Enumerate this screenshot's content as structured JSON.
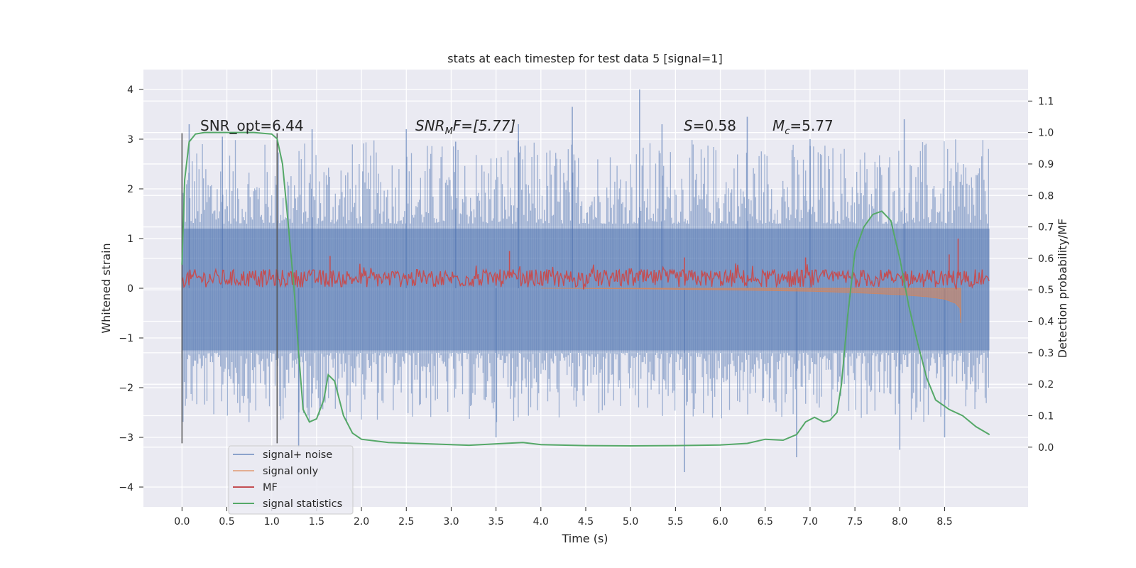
{
  "colors": {
    "background": "#eaeaf2",
    "grid": "#ffffff",
    "signal_noise": "#4c72b0",
    "signal_only": "#dd8452",
    "mf": "#c44e52",
    "stats": "#55a868",
    "vline": "#555555"
  },
  "chart_data": {
    "type": "line",
    "title": "stats at each timestep for test data 5 [signal=1]",
    "xlabel": "Time (s)",
    "ylabel": "Whitened strain",
    "y2label": "Detection probability/MF",
    "xlim": [
      -0.43,
      9.43
    ],
    "ylim": [
      -4.4,
      4.4
    ],
    "y2lim": [
      -0.19,
      1.2
    ],
    "xticks": [
      0.0,
      0.5,
      1.0,
      1.5,
      2.0,
      2.5,
      3.0,
      3.5,
      4.0,
      4.5,
      5.0,
      5.5,
      6.0,
      6.5,
      7.0,
      7.5,
      8.0,
      8.5
    ],
    "xtick_labels": [
      "0.0",
      "0.5",
      "1.0",
      "1.5",
      "2.0",
      "2.5",
      "3.0",
      "3.5",
      "4.0",
      "4.5",
      "5.0",
      "5.5",
      "6.0",
      "6.5",
      "7.0",
      "7.5",
      "8.0",
      "8.5"
    ],
    "yticks": [
      -4,
      -3,
      -2,
      -1,
      0,
      1,
      2,
      3,
      4
    ],
    "ytick_labels": [
      "−4",
      "−3",
      "−2",
      "−1",
      "0",
      "1",
      "2",
      "3",
      "4"
    ],
    "y2ticks": [
      0.0,
      0.1,
      0.2,
      0.3,
      0.4,
      0.5,
      0.6,
      0.7,
      0.8,
      0.9,
      1.0,
      1.1
    ],
    "y2tick_labels": [
      "0.0",
      "0.1",
      "0.2",
      "0.3",
      "0.4",
      "0.5",
      "0.6",
      "0.7",
      "0.8",
      "0.9",
      "1.0",
      "1.1"
    ],
    "grid": true,
    "legend_position": "lower-left",
    "legend": [
      "signal+ noise",
      "signal only",
      "MF",
      "signal statistics"
    ],
    "annotations": {
      "snr_opt": "SNR_opt=6.44",
      "snr_mf_main": "SNR",
      "snr_mf_sub": "M",
      "snr_mf_rest": "F=[5.77]",
      "s_main": "S",
      "s_rest": "=0.58",
      "mc_main": "M",
      "mc_sub": "c",
      "mc_rest": "=5.77"
    },
    "vlines": [
      0.0,
      1.06
    ],
    "series": [
      {
        "name": "signal+ noise",
        "axis": "left",
        "x_range": [
          0.0,
          9.0
        ],
        "band_upper": 1.2,
        "band_lower": -1.25,
        "peaks": [
          {
            "x": 0.08,
            "y": 3.3
          },
          {
            "x": 0.45,
            "y": 3.05
          },
          {
            "x": 1.45,
            "y": 3.2
          },
          {
            "x": 2.5,
            "y": 3.2
          },
          {
            "x": 3.05,
            "y": 2.95
          },
          {
            "x": 3.75,
            "y": 3.3
          },
          {
            "x": 4.35,
            "y": 3.65
          },
          {
            "x": 5.1,
            "y": 4.0
          },
          {
            "x": 5.35,
            "y": 3.3
          },
          {
            "x": 6.3,
            "y": 3.45
          },
          {
            "x": 7.0,
            "y": 3.0
          },
          {
            "x": 8.05,
            "y": 3.4
          },
          {
            "x": 1.3,
            "y": -3.2
          },
          {
            "x": 3.5,
            "y": -3.0
          },
          {
            "x": 5.6,
            "y": -3.7
          },
          {
            "x": 6.85,
            "y": -3.4
          },
          {
            "x": 8.0,
            "y": -3.25
          },
          {
            "x": 8.5,
            "y": -3.0
          }
        ]
      },
      {
        "name": "signal only",
        "axis": "left",
        "points": [
          [
            4.0,
            0.0
          ],
          [
            5.0,
            -0.01
          ],
          [
            6.0,
            -0.03
          ],
          [
            7.0,
            -0.06
          ],
          [
            7.5,
            -0.09
          ],
          [
            8.0,
            -0.13
          ],
          [
            8.3,
            -0.17
          ],
          [
            8.5,
            -0.22
          ],
          [
            8.62,
            -0.3
          ],
          [
            8.67,
            -0.4
          ],
          [
            8.68,
            -0.7
          ]
        ]
      },
      {
        "name": "MF",
        "axis": "left",
        "x_range": [
          0.0,
          9.0
        ],
        "baseline": 0.2,
        "spikes": [
          {
            "x": 1.65,
            "y": 0.65
          },
          {
            "x": 3.65,
            "y": 0.75
          },
          {
            "x": 5.6,
            "y": 0.62
          },
          {
            "x": 6.95,
            "y": 0.62
          },
          {
            "x": 8.55,
            "y": 0.68
          },
          {
            "x": 8.65,
            "y": 1.0
          }
        ]
      },
      {
        "name": "signal statistics",
        "axis": "right",
        "points": [
          [
            0.0,
            0.58
          ],
          [
            0.03,
            0.85
          ],
          [
            0.08,
            0.97
          ],
          [
            0.15,
            0.995
          ],
          [
            0.25,
            1.0
          ],
          [
            0.4,
            1.0
          ],
          [
            0.6,
            1.0
          ],
          [
            0.8,
            1.0
          ],
          [
            1.0,
            0.995
          ],
          [
            1.06,
            0.98
          ],
          [
            1.12,
            0.9
          ],
          [
            1.18,
            0.72
          ],
          [
            1.25,
            0.5
          ],
          [
            1.3,
            0.3
          ],
          [
            1.35,
            0.12
          ],
          [
            1.42,
            0.08
          ],
          [
            1.5,
            0.09
          ],
          [
            1.58,
            0.15
          ],
          [
            1.63,
            0.23
          ],
          [
            1.7,
            0.21
          ],
          [
            1.8,
            0.1
          ],
          [
            1.9,
            0.045
          ],
          [
            2.0,
            0.025
          ],
          [
            2.3,
            0.015
          ],
          [
            2.8,
            0.01
          ],
          [
            3.2,
            0.006
          ],
          [
            3.6,
            0.012
          ],
          [
            3.8,
            0.015
          ],
          [
            4.0,
            0.008
          ],
          [
            4.5,
            0.005
          ],
          [
            5.0,
            0.004
          ],
          [
            5.5,
            0.005
          ],
          [
            6.0,
            0.007
          ],
          [
            6.3,
            0.012
          ],
          [
            6.5,
            0.025
          ],
          [
            6.7,
            0.022
          ],
          [
            6.85,
            0.04
          ],
          [
            6.95,
            0.08
          ],
          [
            7.05,
            0.095
          ],
          [
            7.15,
            0.08
          ],
          [
            7.22,
            0.085
          ],
          [
            7.3,
            0.11
          ],
          [
            7.35,
            0.2
          ],
          [
            7.42,
            0.42
          ],
          [
            7.5,
            0.62
          ],
          [
            7.6,
            0.7
          ],
          [
            7.7,
            0.74
          ],
          [
            7.8,
            0.75
          ],
          [
            7.9,
            0.72
          ],
          [
            8.0,
            0.6
          ],
          [
            8.1,
            0.45
          ],
          [
            8.2,
            0.33
          ],
          [
            8.3,
            0.22
          ],
          [
            8.4,
            0.15
          ],
          [
            8.55,
            0.12
          ],
          [
            8.7,
            0.1
          ],
          [
            8.85,
            0.065
          ],
          [
            9.0,
            0.04
          ]
        ]
      }
    ]
  }
}
